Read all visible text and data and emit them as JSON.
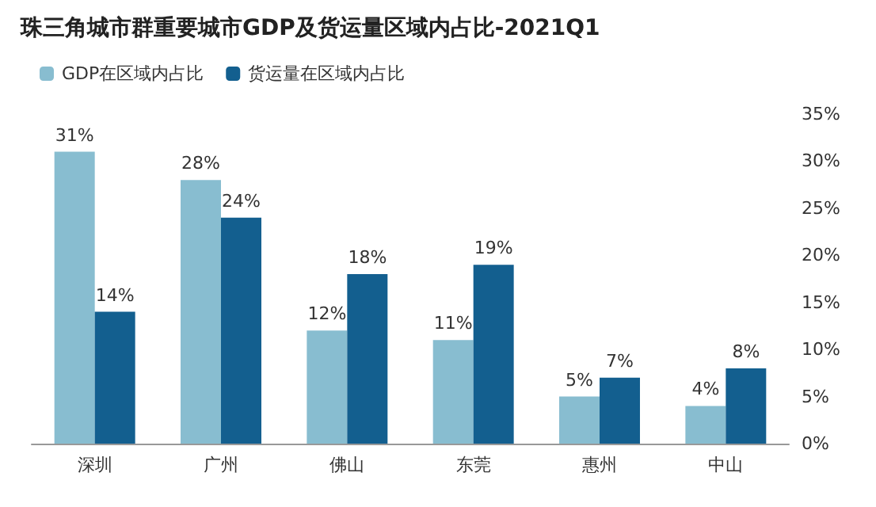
{
  "chart_data": {
    "type": "bar",
    "title": "珠三角城市群重要城市GDP及货运量区域内占比-2021Q1",
    "categories": [
      "深圳",
      "广州",
      "佛山",
      "东莞",
      "惠州",
      "中山"
    ],
    "series": [
      {
        "name": "GDP在区域内占比",
        "color": "#88bdd0",
        "values": [
          31,
          28,
          12,
          11,
          5,
          4
        ],
        "value_labels": [
          "31%",
          "28%",
          "12%",
          "11%",
          "5%",
          "4%"
        ]
      },
      {
        "name": "货运量在区域内占比",
        "color": "#135f8f",
        "values": [
          14,
          24,
          18,
          19,
          7,
          8
        ],
        "value_labels": [
          "14%",
          "24%",
          "18%",
          "19%",
          "7%",
          "8%"
        ]
      }
    ],
    "ylim": [
      0,
      35
    ],
    "yticks": [
      {
        "value": 0,
        "label": "0%"
      },
      {
        "value": 5,
        "label": "5%"
      },
      {
        "value": 10,
        "label": "10%"
      },
      {
        "value": 15,
        "label": "15%"
      },
      {
        "value": 20,
        "label": "20%"
      },
      {
        "value": 25,
        "label": "25%"
      },
      {
        "value": 30,
        "label": "30%"
      },
      {
        "value": 35,
        "label": "35%"
      }
    ],
    "legend": "top left",
    "grid": false
  }
}
